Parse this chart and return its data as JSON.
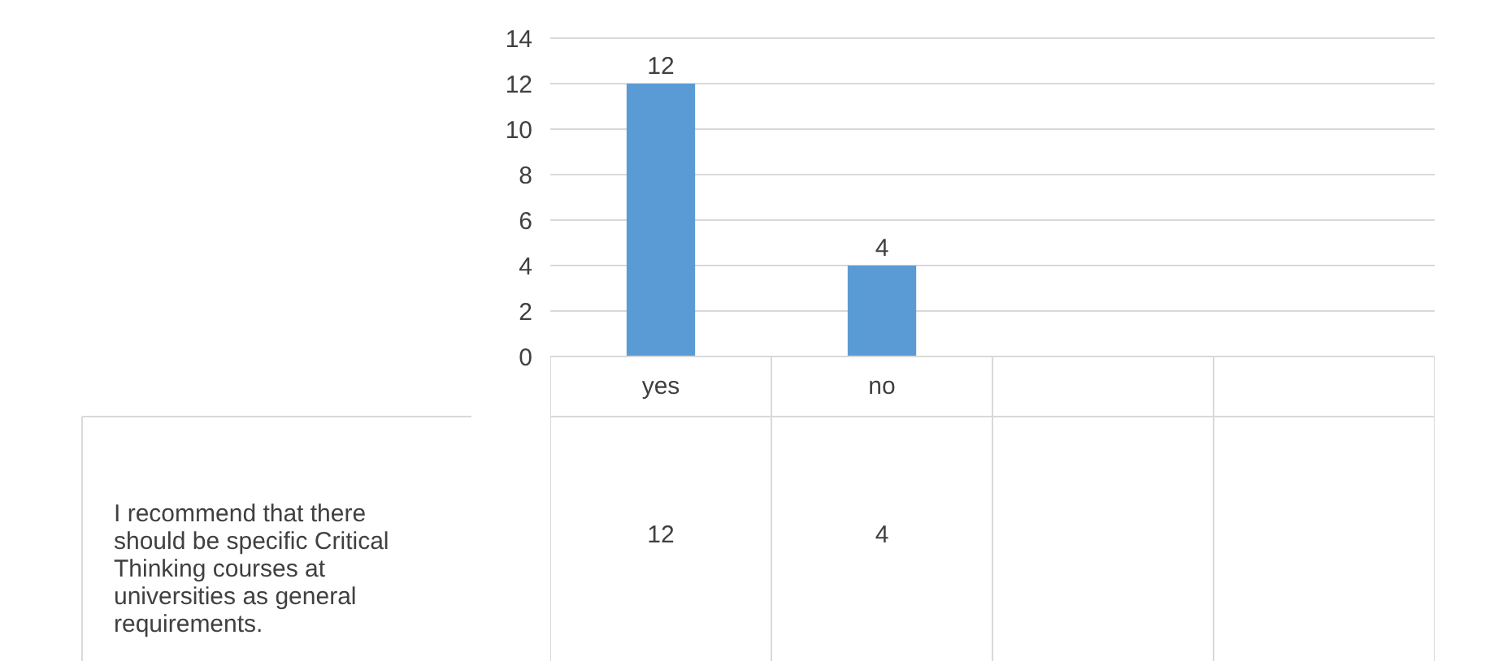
{
  "chart_data": {
    "type": "bar",
    "categories": [
      "yes",
      "no",
      null,
      null
    ],
    "series": [
      {
        "name": "I recommend that there should be specific Critical Thinking courses at universities as general requirements.",
        "color": "#5b9bd5",
        "values": [
          12,
          4,
          null,
          null
        ]
      }
    ],
    "ylim": [
      0,
      14
    ],
    "yticks": [
      0,
      2,
      4,
      6,
      8,
      10,
      12,
      14
    ],
    "grid": "y",
    "data_labels": true,
    "annotations": [
      {
        "text": "12",
        "x": "yes",
        "y": 12
      },
      {
        "text": "4",
        "x": "no",
        "y": 4
      }
    ]
  }
}
